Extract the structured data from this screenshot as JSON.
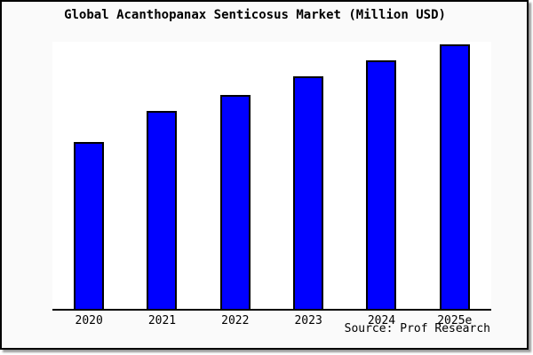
{
  "colors": {
    "bar_fill": "#0000FF",
    "bar_border": "#000000",
    "frame_background": "#FAFAFA",
    "plot_background": "#FFFFFF",
    "axis": "#000000",
    "text": "#000000"
  },
  "chart_data": {
    "type": "bar",
    "title": "Global Acanthopanax Senticosus Market (Million USD)",
    "categories": [
      "2020",
      "2021",
      "2022",
      "2023",
      "2024",
      "2025e"
    ],
    "values": [
      63,
      75,
      81,
      88,
      94,
      100
    ],
    "units": "relative scale (no y-axis ticks shown; 2025e bar = 100)",
    "xlabel": "",
    "ylabel": "",
    "ylim": [
      0,
      101
    ],
    "grid": false,
    "legend": false,
    "source": "Source: Prof Research"
  }
}
